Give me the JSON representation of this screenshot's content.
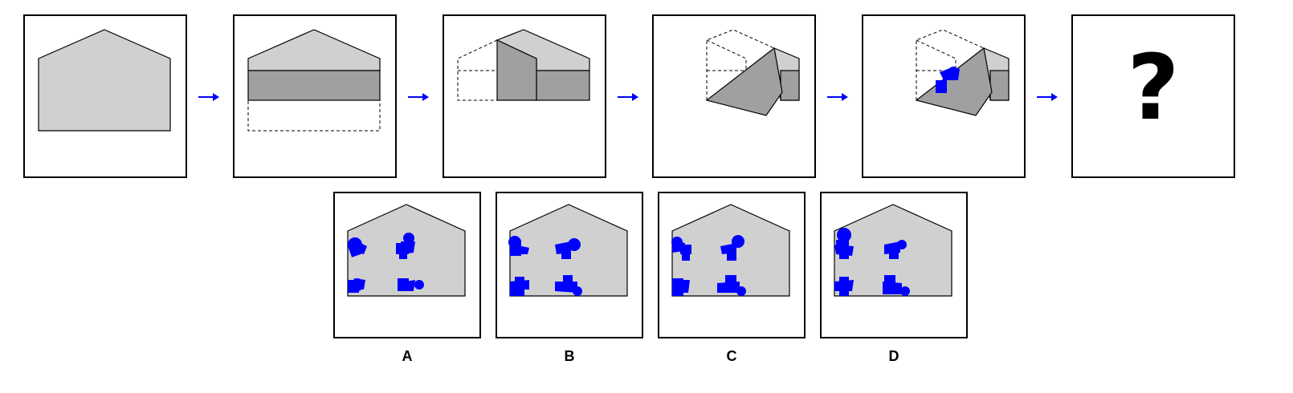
{
  "puzzle": {
    "question_mark": "?",
    "options": [
      {
        "label": "A"
      },
      {
        "label": "B"
      },
      {
        "label": "C"
      },
      {
        "label": "D"
      }
    ]
  },
  "colors": {
    "paper": "#d0d0d0",
    "paper_folded": "#a0a0a0",
    "punch": "#0000ff",
    "arrow": "#0000ff",
    "outline": "#000000"
  }
}
